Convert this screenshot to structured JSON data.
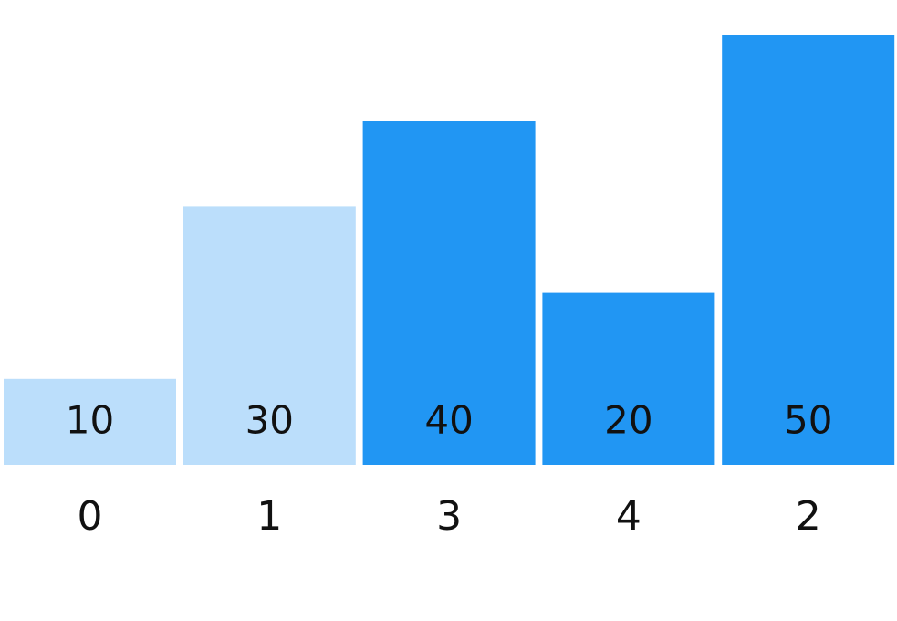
{
  "chart_data": {
    "type": "bar",
    "categories": [
      "0",
      "1",
      "3",
      "4",
      "2"
    ],
    "values": [
      10,
      30,
      40,
      20,
      50
    ],
    "value_labels": [
      "10",
      "30",
      "40",
      "20",
      "50"
    ],
    "highlighted": [
      false,
      false,
      true,
      true,
      true
    ],
    "ylim": [
      0,
      50
    ],
    "grid": false,
    "colors": {
      "highlighted": "#2196F3",
      "normal": "#BBDEFB",
      "text": "#111111",
      "background": "#FFFFFF"
    }
  }
}
